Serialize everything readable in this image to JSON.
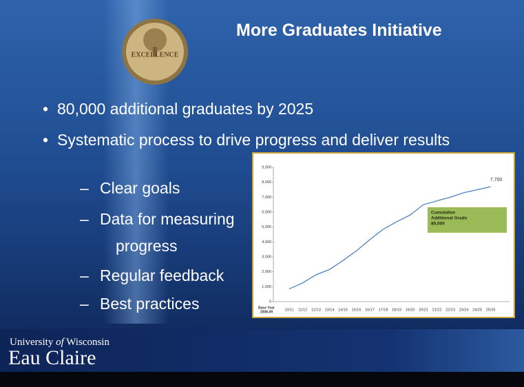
{
  "slide": {
    "title": "More Graduates Initiative",
    "seal_text": "EXCELLENCE",
    "bullets": [
      "80,000 additional graduates by 2025",
      "Systematic process to drive progress and deliver results"
    ],
    "sub_bullets": [
      "Clear goals",
      "Data for measuring progress",
      "Regular feedback",
      "Best practices"
    ],
    "footer": {
      "line1": [
        "University",
        "of",
        "Wisconsin"
      ],
      "line2": "Eau Claire"
    }
  },
  "chart_data": {
    "type": "line",
    "origin_label": [
      "Base Year",
      "2008-09"
    ],
    "categories": [
      "10/11",
      "11/12",
      "12/13",
      "13/14",
      "14/15",
      "15/16",
      "16/17",
      "17/18",
      "18/19",
      "19/20",
      "20/21",
      "21/22",
      "22/23",
      "23/24",
      "24/25",
      "25/26"
    ],
    "values": [
      850,
      1250,
      1800,
      2150,
      2750,
      3400,
      4150,
      4850,
      5350,
      5800,
      6500,
      6750,
      7000,
      7300,
      7500,
      7700
    ],
    "value_labels": [
      null,
      null,
      null,
      null,
      null,
      null,
      null,
      null,
      null,
      null,
      null,
      null,
      null,
      null,
      null,
      "7,700"
    ],
    "color": "#4f81bd",
    "ylim": [
      0,
      9000
    ],
    "yticks": [
      0,
      {
        "value": 1000,
        "label": "1,000"
      },
      {
        "value": 2000,
        "label": "2,000"
      },
      {
        "value": 3000,
        "label": "3,000"
      },
      {
        "value": 4000,
        "label": "4,000"
      },
      {
        "value": 5000,
        "label": "5,000"
      },
      {
        "value": 6000,
        "label": "6,000"
      },
      {
        "value": 7000,
        "label": "7,000"
      },
      {
        "value": 8000,
        "label": "8,000"
      },
      {
        "value": 9000,
        "label": "9,000"
      }
    ],
    "annotation": [
      "Cumulative",
      "Additional Grads",
      "80,000"
    ]
  }
}
